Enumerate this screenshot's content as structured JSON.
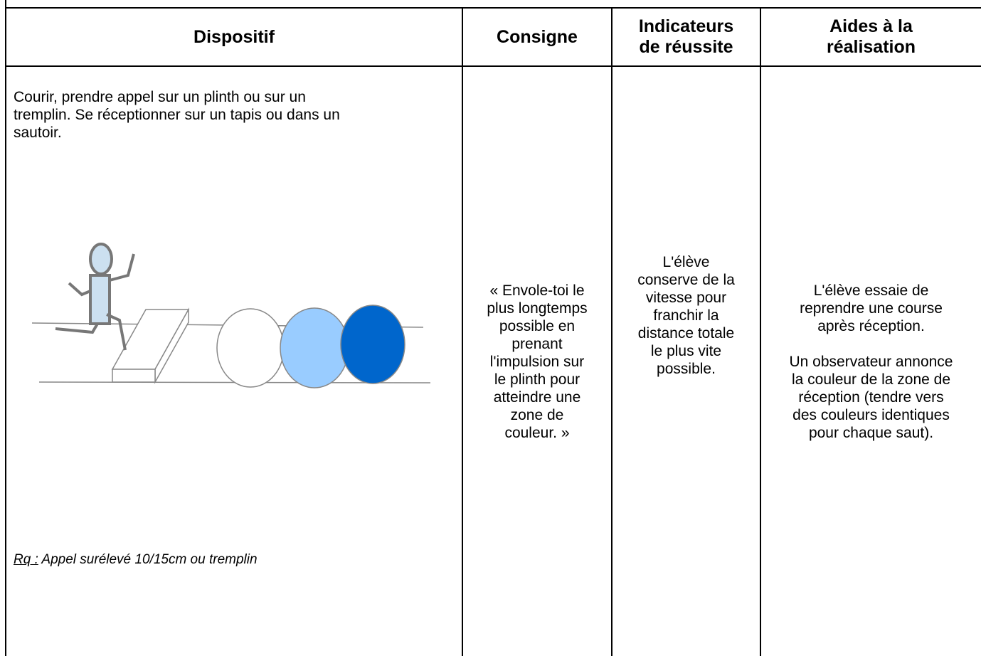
{
  "table": {
    "headers": [
      [
        "Dispositif"
      ],
      [
        "Consigne"
      ],
      [
        "Indicateurs",
        "de réussite"
      ],
      [
        "Aides à la",
        "réalisation"
      ]
    ],
    "dispositif": {
      "lines": [
        "Courir, prendre appel sur un plinth ou sur un",
        "tremplin. Se réceptionner sur un tapis ou dans un",
        "sautoir."
      ],
      "note_label": "Rq :",
      "note_text": " Appel surélevé 10/15cm ou tremplin"
    },
    "consigne": [
      "« Envole-toi le",
      "plus longtemps",
      "possible en",
      "prenant",
      "l'impulsion sur",
      "le plinth pour",
      "atteindre une",
      "zone de",
      "couleur. »"
    ],
    "indicateurs": [
      "L'élève",
      "conserve de la",
      "vitesse pour",
      "franchir la",
      "distance totale",
      "le plus vite",
      "possible."
    ],
    "aides": [
      "L'élève essaie de",
      "reprendre une course",
      "après réception.",
      "",
      "Un observateur annonce",
      "la couleur de la zone de",
      "réception (tendre vers",
      "des couleurs identiques",
      "pour chaque saut)."
    ]
  }
}
